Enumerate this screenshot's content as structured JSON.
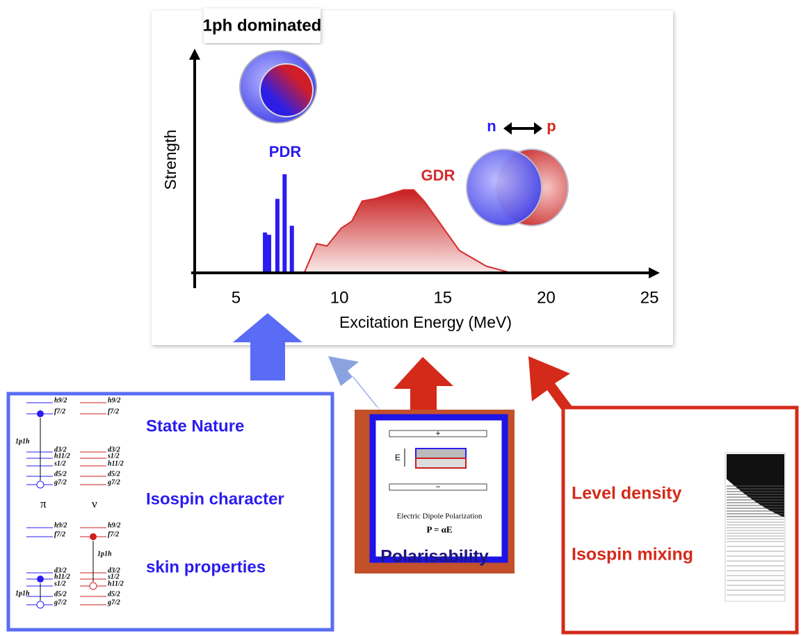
{
  "chart_data": {
    "type": "spectrum",
    "title": "1ph dominated",
    "x_label": "Excitation Energy (MeV)",
    "y_label": "Strength",
    "xlim": [
      3,
      25.5
    ],
    "ylim": [
      0,
      100
    ],
    "xticks": [
      5,
      10,
      15,
      20,
      25
    ],
    "series": [
      {
        "name": "PDR",
        "color": "#2a1cf0",
        "kind": "bars",
        "x": [
          6.4,
          6.6,
          7.0,
          7.35,
          7.7
        ],
        "values": [
          18,
          17,
          33,
          44,
          21
        ]
      },
      {
        "name": "GDR",
        "color": "#d42a2a",
        "kind": "area",
        "x": [
          8.3,
          8.9,
          9.4,
          10.1,
          10.6,
          11.1,
          11.7,
          12.4,
          13.1,
          13.6,
          14.1,
          14.8,
          15.8,
          17.1,
          18.3
        ],
        "values": [
          0,
          13,
          12,
          20,
          23,
          32,
          33,
          35,
          37,
          37,
          32,
          23,
          10,
          3,
          0
        ]
      }
    ],
    "annotations": {
      "n": "n",
      "p": "p"
    }
  },
  "panels": {
    "left": {
      "items": [
        "State Nature",
        "Isospin character",
        "skin properties"
      ],
      "level_scheme": {
        "proton": "π",
        "neutron": "ν",
        "upper_p": [
          "h9/2",
          "f7/2",
          "d3/2",
          "h11/2",
          "s1/2",
          "d5/2",
          "g7/2"
        ],
        "upper_n": [
          "h9/2",
          "f7/2",
          "d3/2",
          "s1/2",
          "h11/2",
          "d5/2",
          "g7/2"
        ],
        "lower_p": [
          "h9/2",
          "f7/2",
          "d3/2",
          "h11/2",
          "s1/2",
          "d5/2",
          "g7/2"
        ],
        "lower_n": [
          "h9/2",
          "f7/2",
          "d3/2",
          "s1/2",
          "h11/2",
          "d5/2",
          "g7/2"
        ],
        "ph": [
          "1p1h",
          "1p1h",
          "1p1h"
        ]
      }
    },
    "middle": {
      "title": "Polarisability",
      "plus": "+",
      "minus": "−",
      "field": "E",
      "caption": "Electric Dipole Polarization",
      "formula": "P = αE"
    },
    "right": {
      "items": [
        "Level density",
        "Isospin mixing"
      ]
    }
  }
}
